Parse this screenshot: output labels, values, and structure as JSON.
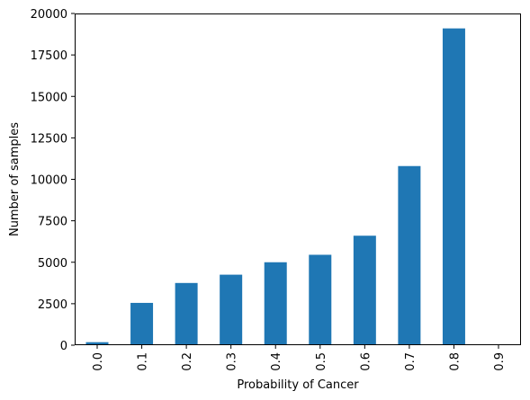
{
  "chart_data": {
    "type": "bar",
    "title": "",
    "xlabel": "Probability of Cancer",
    "ylabel": "Number of samples",
    "categories": [
      "0.0",
      "0.1",
      "0.2",
      "0.3",
      "0.4",
      "0.5",
      "0.6",
      "0.7",
      "0.8",
      "0.9"
    ],
    "values": [
      180,
      2550,
      3750,
      4250,
      5000,
      5450,
      6600,
      10800,
      19100,
      0
    ],
    "ylim": [
      0,
      20000
    ],
    "yticks": [
      "0",
      "2500",
      "5000",
      "7500",
      "10000",
      "12500",
      "15000",
      "17500",
      "20000"
    ],
    "ytick_values": [
      0,
      2500,
      5000,
      7500,
      10000,
      12500,
      15000,
      17500,
      20000
    ],
    "bar_color": "#1f77b4",
    "grid": false,
    "legend": "none",
    "xtick_rotation": "vertical"
  }
}
